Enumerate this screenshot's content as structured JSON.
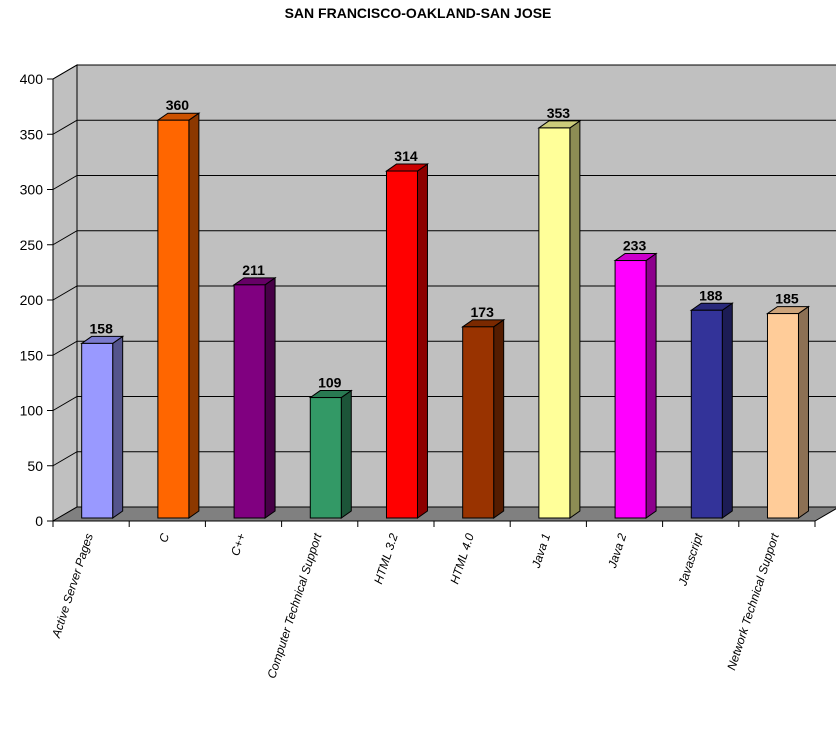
{
  "chart_data": {
    "type": "bar",
    "title": "SAN FRANCISCO-OAKLAND-SAN JOSE",
    "xlabel": "",
    "ylabel": "",
    "categories": [
      "Active Server Pages",
      "C",
      "C++",
      "Computer Technical Support",
      "HTML 3.2",
      "HTML 4.0",
      "Java 1",
      "Java 2",
      "Javascript",
      "Network Technical Support"
    ],
    "values": [
      158,
      360,
      211,
      109,
      314,
      173,
      353,
      233,
      188,
      185
    ],
    "colors": [
      "#9999ff",
      "#ff6600",
      "#800080",
      "#339966",
      "#ff0000",
      "#993300",
      "#ffff99",
      "#ff00ff",
      "#333399",
      "#ffcc99"
    ],
    "ylim": [
      0,
      400
    ],
    "yticks": [
      0,
      50,
      100,
      150,
      200,
      250,
      300,
      350,
      400
    ],
    "grid": true,
    "style": "3d",
    "wall_color": "#c0c0c0",
    "floor_color": "#808080"
  }
}
